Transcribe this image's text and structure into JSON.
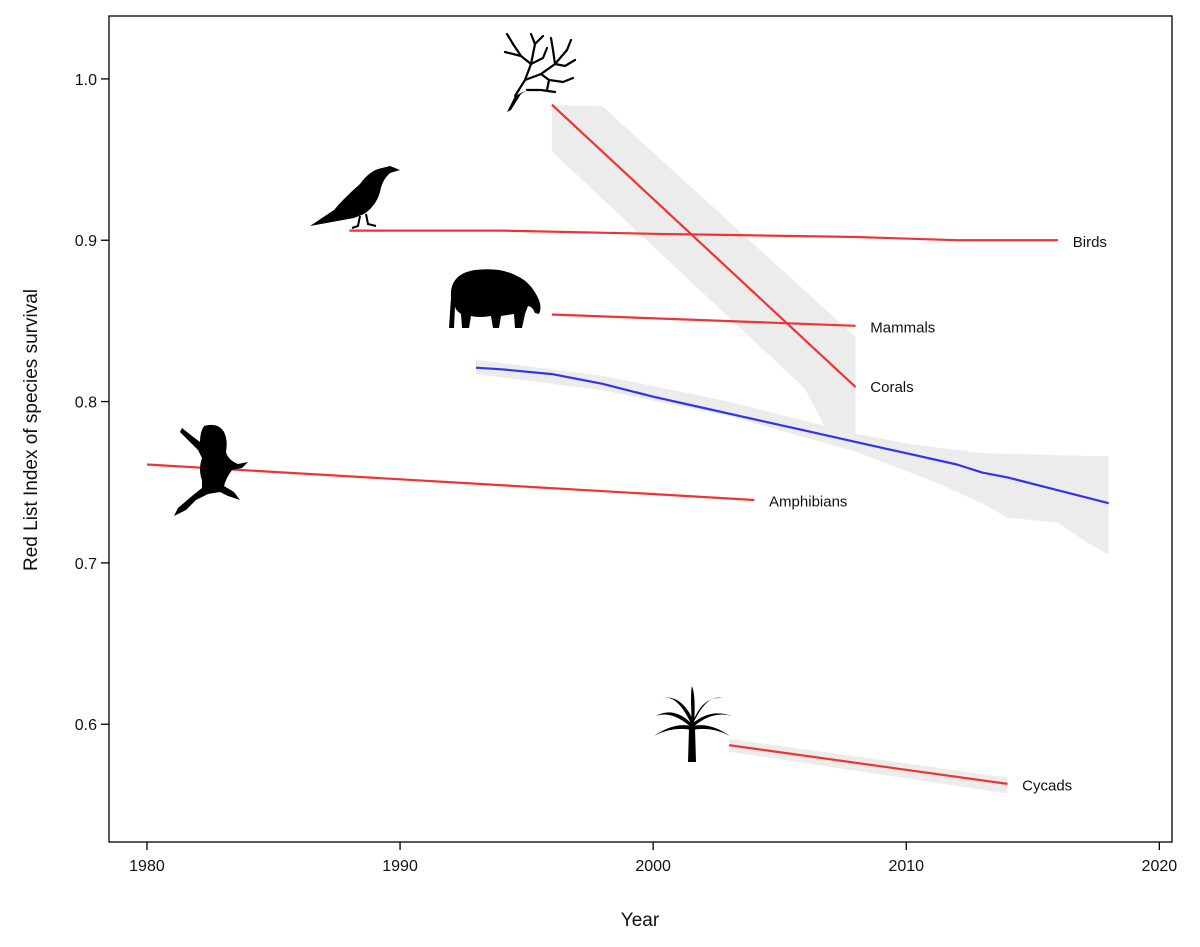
{
  "chart_data": {
    "type": "line",
    "xlabel": "Year",
    "ylabel": "Red List Index of species survival",
    "xlim": [
      1978.5,
      2020.5
    ],
    "ylim": [
      0.527,
      1.039
    ],
    "x_ticks": [
      1980,
      1990,
      2000,
      2010,
      2020
    ],
    "y_ticks": [
      0.6,
      0.7,
      0.8,
      0.9,
      1.0
    ],
    "x_tick_labels": [
      "1980",
      "1990",
      "2000",
      "2010",
      "2020"
    ],
    "y_tick_labels": [
      "0.6",
      "0.7",
      "0.8",
      "0.9",
      "1.0"
    ],
    "grid": false,
    "legend": "none",
    "colors": {
      "species": "#ee3333",
      "aggregate": "#3333ee",
      "band": "#ececec"
    },
    "series": [
      {
        "name": "Corals",
        "color": "#ee3333",
        "x": [
          1996,
          2008
        ],
        "y": [
          0.984,
          0.809
        ],
        "band_upper": [
          [
            1996,
            0.984
          ],
          [
            1998,
            0.983
          ],
          [
            2008,
            0.84
          ]
        ],
        "band_lower": [
          [
            1996,
            0.955
          ],
          [
            2006,
            0.808
          ],
          [
            2007,
            0.778
          ],
          [
            2008,
            0.778
          ]
        ],
        "label_at": [
          2008.5,
          0.809
        ],
        "icon": "coral-icon"
      },
      {
        "name": "Birds",
        "color": "#ee3333",
        "x": [
          1988,
          1994,
          2000,
          2008,
          2012,
          2016
        ],
        "y": [
          0.906,
          0.906,
          0.904,
          0.902,
          0.9,
          0.9
        ],
        "label_at": [
          2016.5,
          0.899
        ],
        "icon": "bird-icon"
      },
      {
        "name": "Mammals",
        "color": "#ee3333",
        "x": [
          1996,
          2008
        ],
        "y": [
          0.854,
          0.847
        ],
        "label_at": [
          2008.5,
          0.846
        ],
        "icon": "tapir-icon"
      },
      {
        "name": "Amphibians",
        "color": "#ee3333",
        "x": [
          1980,
          2004
        ],
        "y": [
          0.761,
          0.739
        ],
        "label_at": [
          2004.5,
          0.738
        ],
        "icon": "frog-icon"
      },
      {
        "name": "Cycads",
        "color": "#ee3333",
        "x": [
          2003,
          2014
        ],
        "y": [
          0.587,
          0.563
        ],
        "band_upper": [
          [
            2003,
            0.591
          ],
          [
            2014,
            0.567
          ]
        ],
        "band_lower": [
          [
            2003,
            0.583
          ],
          [
            2014,
            0.557
          ]
        ],
        "label_at": [
          2014.5,
          0.562
        ],
        "icon": "palm-icon"
      },
      {
        "name": "",
        "color": "#3333ee",
        "x": [
          1993,
          1994,
          1996,
          1998,
          2000,
          2002,
          2004,
          2006,
          2008,
          2010,
          2012,
          2013,
          2014,
          2016,
          2018
        ],
        "y": [
          0.821,
          0.82,
          0.817,
          0.811,
          0.803,
          0.796,
          0.789,
          0.782,
          0.775,
          0.768,
          0.761,
          0.756,
          0.753,
          0.745,
          0.737
        ],
        "band_upper": [
          [
            1993,
            0.826
          ],
          [
            1998,
            0.816
          ],
          [
            2003,
            0.8
          ],
          [
            2006,
            0.788
          ],
          [
            2008,
            0.78
          ],
          [
            2010,
            0.774
          ],
          [
            2013,
            0.768
          ],
          [
            2018,
            0.766
          ]
        ],
        "band_lower": [
          [
            1993,
            0.817
          ],
          [
            1998,
            0.807
          ],
          [
            2003,
            0.791
          ],
          [
            2008,
            0.769
          ],
          [
            2011,
            0.751
          ],
          [
            2013,
            0.737
          ],
          [
            2014,
            0.728
          ],
          [
            2016,
            0.725
          ],
          [
            2017,
            0.714
          ],
          [
            2018,
            0.705
          ]
        ]
      }
    ]
  }
}
